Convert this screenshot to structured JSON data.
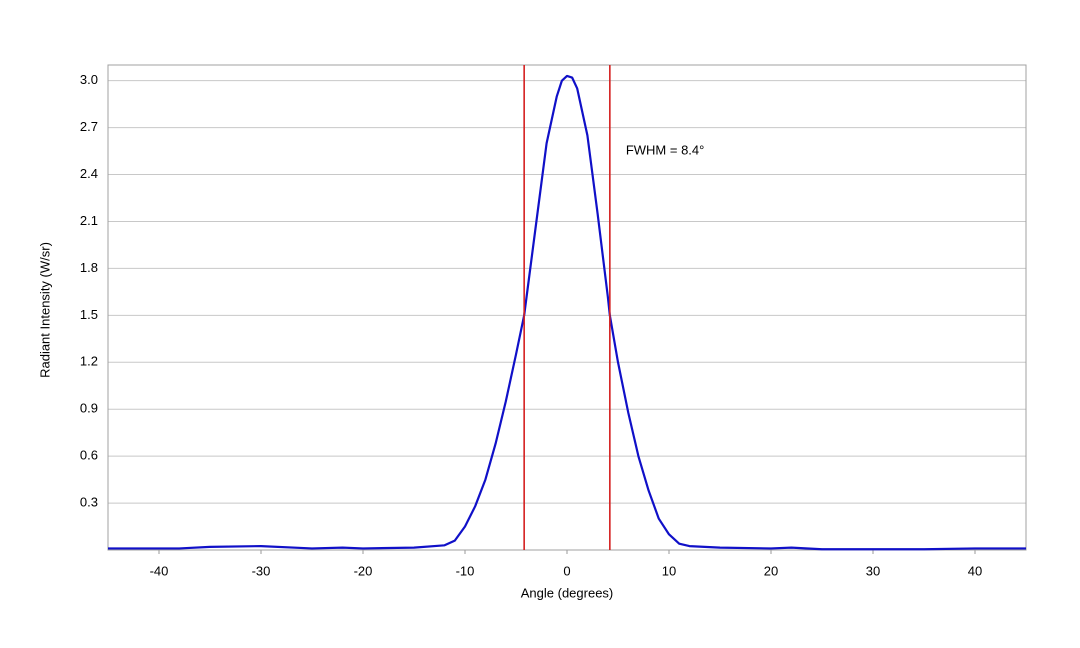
{
  "chart_data": {
    "type": "line",
    "x_label": "Angle (degrees)",
    "y_label": "Radiant Intensity (W/sr)",
    "annotation": "FWHM = 8.4°",
    "xlim": [
      -45,
      45
    ],
    "xticks": [
      -40,
      -30,
      -20,
      -10,
      0,
      10,
      20,
      30,
      40
    ],
    "ylim": [
      0,
      3.1
    ],
    "yticks": [
      0.3,
      0.6,
      0.9,
      1.2,
      1.5,
      1.8,
      2.1,
      2.4,
      2.7,
      {
        "value": 3,
        "label": "3.0"
      }
    ],
    "grid": true,
    "vlines": [
      -4.2,
      4.2
    ],
    "vline_color": "#d42020",
    "series": [
      {
        "color": "#1010c8",
        "x": [
          -45,
          -40,
          -38,
          -35,
          -30,
          -25,
          -22,
          -20,
          -15,
          -12,
          -11,
          -10,
          -9,
          -8,
          -7,
          -6,
          -5,
          -4.2,
          -4,
          -3,
          -2,
          -1,
          -0.5,
          0,
          0.5,
          1,
          2,
          3,
          4,
          4.2,
          5,
          6,
          7,
          8,
          9,
          10,
          11,
          12,
          15,
          20,
          22,
          25,
          30,
          35,
          40,
          45
        ],
        "values": [
          0.01,
          0.01,
          0.01,
          0.02,
          0.025,
          0.01,
          0.015,
          0.01,
          0.015,
          0.03,
          0.06,
          0.15,
          0.28,
          0.45,
          0.68,
          0.95,
          1.25,
          1.5,
          1.6,
          2.1,
          2.6,
          2.9,
          3.0,
          3.03,
          3.02,
          2.95,
          2.65,
          2.15,
          1.62,
          1.5,
          1.2,
          0.88,
          0.6,
          0.38,
          0.2,
          0.1,
          0.04,
          0.025,
          0.015,
          0.01,
          0.015,
          0.005,
          0.005,
          0.005,
          0.01,
          0.01
        ]
      }
    ]
  }
}
